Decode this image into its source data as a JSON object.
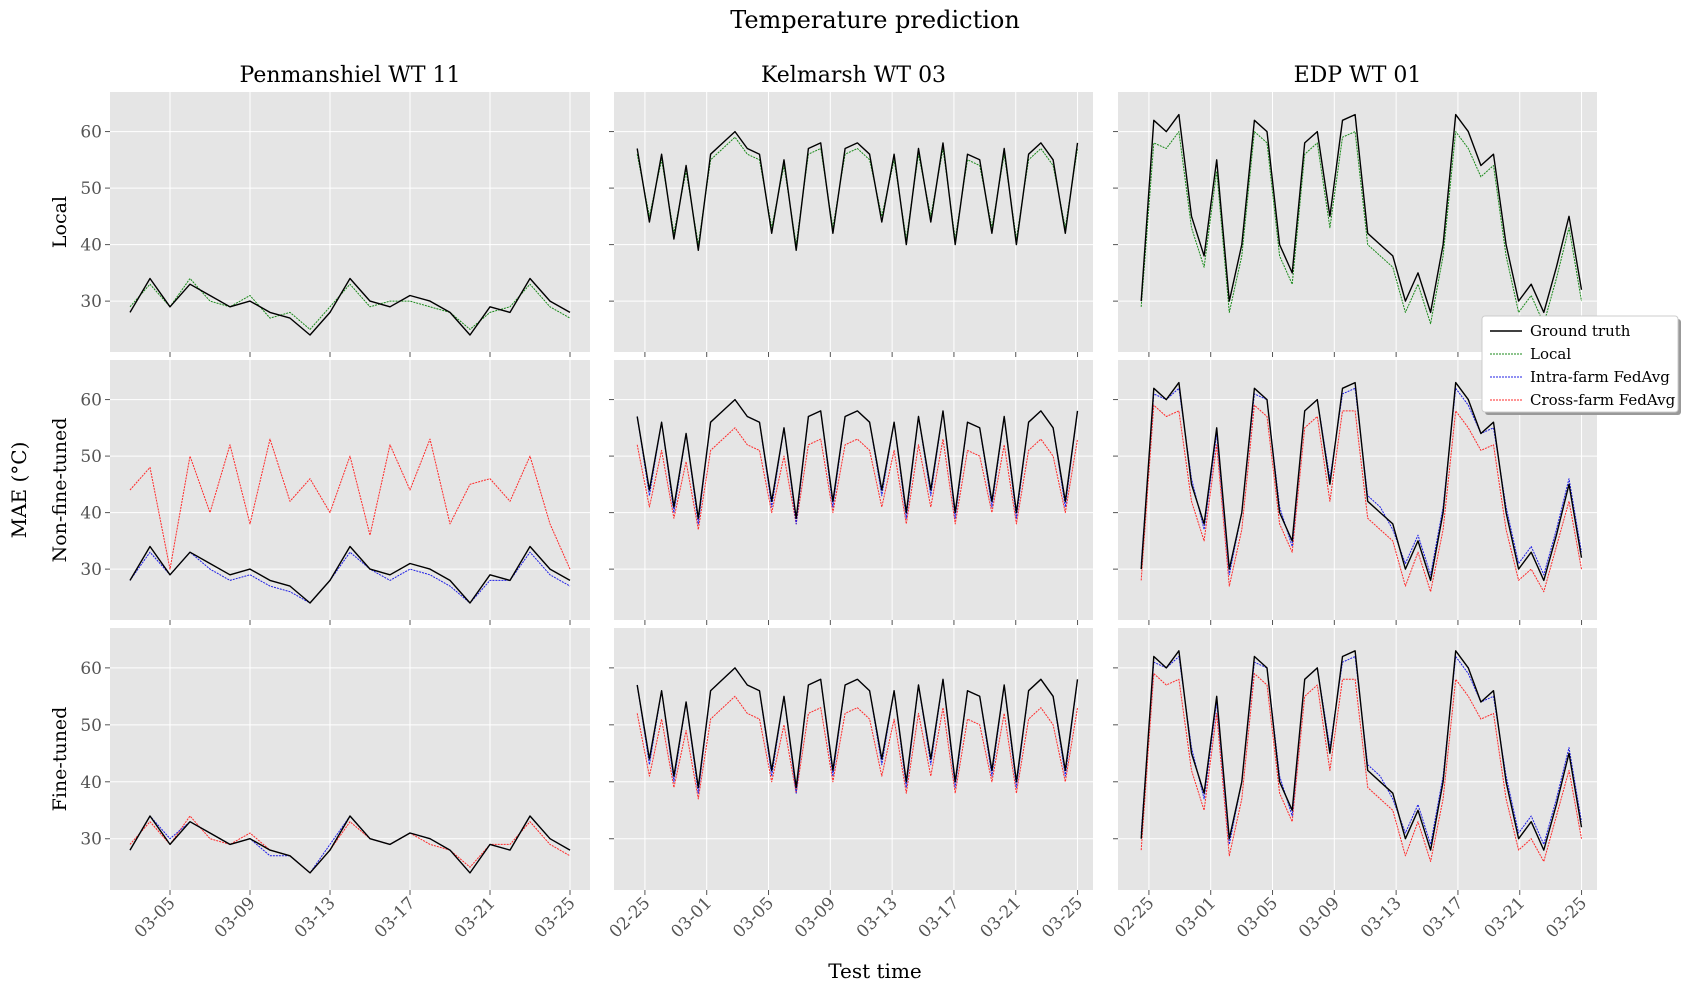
{
  "figure": {
    "suptitle": "Temperature prediction",
    "xlabel": "Test time",
    "ylabel": "MAE (°C)",
    "row_labels": [
      "Local",
      "Non-fine-tuned",
      "Fine-tuned"
    ],
    "column_titles": [
      "Penmanshiel WT 11",
      "Kelmarsh WT 03",
      "EDP WT 01"
    ]
  },
  "legend": {
    "placement": "right, between rows 1 and 2",
    "entries": [
      {
        "label": "Ground truth",
        "color": "#000000",
        "style": "solid"
      },
      {
        "label": "Local",
        "color": "#1a8a1a",
        "style": "dotted"
      },
      {
        "label": "Intra-farm FedAvg",
        "color": "#1f1fe6",
        "style": "dotted"
      },
      {
        "label": "Cross-farm FedAvg",
        "color": "#ff2a2a",
        "style": "dotted"
      }
    ]
  },
  "colors": {
    "panel_background": "#e5e5e5",
    "grid": "#ffffff",
    "ground_truth": "#000000",
    "local": "#1a8a1a",
    "intra_farm": "#1f1fe6",
    "cross_farm": "#ff2a2a"
  },
  "chart_data": {
    "type": "line",
    "grid": true,
    "ylim": [
      21,
      67
    ],
    "yticks": [
      30,
      40,
      50,
      60
    ],
    "columns": [
      {
        "title": "Penmanshiel WT 11",
        "xlim": [
          "03-02",
          "03-26"
        ],
        "xticks": [
          "03-05",
          "03-09",
          "03-13",
          "03-17",
          "03-21",
          "03-25"
        ],
        "segments": [
          {
            "x": [
              "03-03",
              "03-04",
              "03-05",
              "03-06",
              "03-07",
              "03-08",
              "03-09",
              "03-10",
              "03-11",
              "03-12",
              "03-13",
              "03-14",
              "03-15",
              "03-16",
              "03-17",
              "03-18",
              "03-19",
              "03-20",
              "03-21",
              "03-22",
              "03-23",
              "03-24",
              "03-25"
            ],
            "ground_truth": [
              28,
              34,
              29,
              33,
              31,
              29,
              30,
              28,
              27,
              24,
              28,
              34,
              30,
              29,
              31,
              30,
              28,
              24,
              29,
              28,
              34,
              30,
              28
            ]
          },
          {
            "x": [
              "03-03",
              "03-04",
              "03-05",
              "03-06",
              "03-07",
              "03-08",
              "03-09",
              "03-10",
              "03-11",
              "03-12",
              "03-13",
              "03-14",
              "03-15",
              "03-16",
              "03-17",
              "03-18",
              "03-19",
              "03-20",
              "03-21",
              "03-22",
              "03-23",
              "03-24",
              "03-25"
            ],
            "local": [
              29,
              33,
              29,
              34,
              30,
              29,
              31,
              27,
              28,
              25,
              29,
              33,
              29,
              30,
              30,
              29,
              28,
              25,
              28,
              29,
              33,
              29,
              27
            ]
          }
        ],
        "rows": {
          "Local": {
            "intra_farm": null,
            "cross_farm": null
          },
          "Non-fine-tuned": {
            "intra_farm": [
              28,
              33,
              29,
              33,
              30,
              28,
              29,
              27,
              26,
              24,
              28,
              33,
              30,
              28,
              30,
              29,
              27,
              24,
              28,
              28,
              33,
              29,
              27
            ],
            "cross_farm": [
              44,
              48,
              30,
              50,
              40,
              52,
              38,
              53,
              42,
              46,
              40,
              50,
              36,
              52,
              44,
              53,
              38,
              45,
              46,
              42,
              50,
              38,
              30
            ]
          },
          "Fine-tuned": {
            "intra_farm": [
              28,
              34,
              30,
              33,
              31,
              29,
              30,
              27,
              27,
              24,
              29,
              34,
              30,
              29,
              31,
              30,
              28,
              24,
              29,
              28,
              34,
              30,
              28
            ],
            "cross_farm": [
              29,
              33,
              29,
              34,
              30,
              29,
              31,
              28,
              27,
              24,
              28,
              33,
              30,
              29,
              31,
              29,
              28,
              25,
              29,
              29,
              33,
              29,
              27
            ]
          }
        }
      },
      {
        "title": "Kelmarsh WT 03",
        "xlim": [
          "02-23",
          "03-26"
        ],
        "xticks": [
          "02-25",
          "03-01",
          "03-05",
          "03-09",
          "03-13",
          "03-17",
          "03-21",
          "03-25"
        ],
        "ground_truth": [
          57,
          44,
          56,
          41,
          54,
          39,
          56,
          58,
          60,
          57,
          56,
          42,
          55,
          39,
          57,
          58,
          42,
          57,
          58,
          56,
          44,
          56,
          40,
          57,
          44,
          58,
          40,
          56,
          55,
          42,
          57,
          40,
          56,
          58,
          55,
          42,
          58
        ],
        "local": [
          56,
          45,
          55,
          42,
          53,
          40,
          55,
          57,
          59,
          56,
          55,
          43,
          54,
          40,
          56,
          57,
          43,
          56,
          57,
          55,
          45,
          55,
          41,
          56,
          45,
          57,
          41,
          55,
          54,
          43,
          56,
          41,
          55,
          57,
          54,
          43,
          57
        ],
        "intra_farm": [
          57,
          43,
          56,
          40,
          54,
          38,
          56,
          58,
          60,
          57,
          56,
          41,
          55,
          38,
          57,
          58,
          41,
          57,
          58,
          56,
          43,
          56,
          39,
          57,
          43,
          58,
          39,
          56,
          55,
          41,
          57,
          39,
          56,
          58,
          55,
          41,
          58
        ],
        "cross_farm": [
          52,
          41,
          51,
          39,
          49,
          37,
          51,
          53,
          55,
          52,
          51,
          40,
          50,
          38,
          52,
          53,
          40,
          52,
          53,
          51,
          41,
          51,
          38,
          52,
          41,
          53,
          38,
          51,
          50,
          40,
          52,
          38,
          51,
          53,
          50,
          40,
          53
        ]
      },
      {
        "title": "EDP WT 01",
        "xlim": [
          "02-23",
          "03-26"
        ],
        "xticks": [
          "02-25",
          "03-01",
          "03-05",
          "03-09",
          "03-13",
          "03-17",
          "03-21",
          "03-25"
        ],
        "ground_truth": [
          30,
          62,
          60,
          63,
          45,
          38,
          55,
          30,
          40,
          62,
          60,
          40,
          35,
          58,
          60,
          45,
          62,
          63,
          42,
          40,
          38,
          30,
          35,
          28,
          40,
          63,
          60,
          54,
          56,
          40,
          30,
          33,
          28,
          36,
          45,
          32
        ],
        "local": [
          29,
          58,
          57,
          60,
          43,
          36,
          53,
          28,
          38,
          60,
          58,
          38,
          33,
          56,
          58,
          43,
          59,
          60,
          40,
          38,
          36,
          28,
          33,
          26,
          38,
          60,
          57,
          52,
          54,
          38,
          28,
          31,
          26,
          34,
          43,
          30
        ],
        "intra_farm": [
          31,
          61,
          60,
          62,
          46,
          37,
          54,
          29,
          40,
          61,
          60,
          41,
          34,
          58,
          60,
          46,
          61,
          62,
          43,
          41,
          37,
          31,
          36,
          29,
          41,
          62,
          59,
          54,
          55,
          41,
          31,
          34,
          29,
          37,
          46,
          33
        ],
        "cross_farm": [
          28,
          59,
          57,
          58,
          42,
          35,
          52,
          27,
          37,
          59,
          57,
          38,
          33,
          55,
          57,
          42,
          58,
          58,
          39,
          37,
          35,
          27,
          33,
          26,
          37,
          58,
          55,
          51,
          52,
          37,
          28,
          30,
          26,
          34,
          42,
          30
        ]
      }
    ]
  }
}
